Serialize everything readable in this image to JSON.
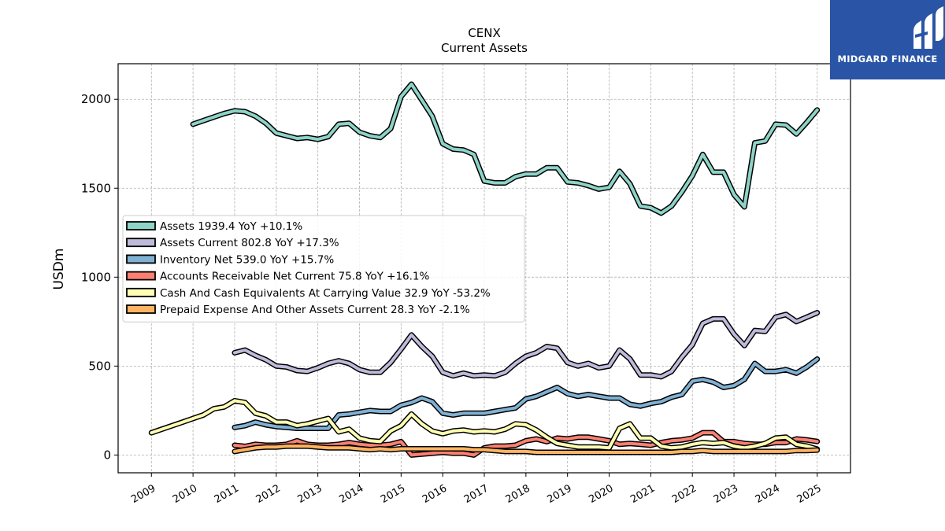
{
  "chart_data": {
    "type": "line",
    "title": "CENX",
    "subtitle": "Current  Assets",
    "xlabel": "",
    "ylabel": "USDm",
    "xlim": [
      2008.2,
      2025.8
    ],
    "ylim": [
      -100,
      2200
    ],
    "xticks": [
      "2009",
      "2010",
      "2011",
      "2012",
      "2013",
      "2014",
      "2015",
      "2016",
      "2017",
      "2018",
      "2019",
      "2020",
      "2021",
      "2022",
      "2023",
      "2024",
      "2025"
    ],
    "yticks": [
      0,
      500,
      1000,
      1500,
      2000
    ],
    "grid": true,
    "legend_position": "center-left",
    "series": [
      {
        "name": "Assets",
        "legend": "Assets  1939.4 YoY +10.1%",
        "color": "#8dd3c7",
        "x": [
          2010.0,
          2010.25,
          2010.5,
          2010.75,
          2011.0,
          2011.25,
          2011.5,
          2011.75,
          2012.0,
          2012.25,
          2012.5,
          2012.75,
          2013.0,
          2013.25,
          2013.5,
          2013.75,
          2014.0,
          2014.25,
          2014.5,
          2014.75,
          2015.0,
          2015.25,
          2015.5,
          2015.75,
          2016.0,
          2016.25,
          2016.5,
          2016.75,
          2017.0,
          2017.25,
          2017.5,
          2017.75,
          2018.0,
          2018.25,
          2018.5,
          2018.75,
          2019.0,
          2019.25,
          2019.5,
          2019.75,
          2020.0,
          2020.25,
          2020.5,
          2020.75,
          2021.0,
          2021.25,
          2021.5,
          2021.75,
          2022.0,
          2022.25,
          2022.5,
          2022.75,
          2023.0,
          2023.25,
          2023.5,
          2023.75,
          2024.0,
          2024.25,
          2024.5,
          2024.75,
          2025.0
        ],
        "values": [
          1860,
          1880,
          1900,
          1920,
          1935,
          1930,
          1905,
          1865,
          1810,
          1795,
          1780,
          1785,
          1775,
          1790,
          1860,
          1865,
          1815,
          1795,
          1785,
          1835,
          2015,
          2085,
          1995,
          1905,
          1750,
          1720,
          1715,
          1690,
          1540,
          1530,
          1530,
          1565,
          1580,
          1580,
          1615,
          1615,
          1535,
          1530,
          1515,
          1495,
          1505,
          1595,
          1525,
          1400,
          1390,
          1360,
          1400,
          1480,
          1570,
          1690,
          1590,
          1590,
          1465,
          1395,
          1755,
          1765,
          1860,
          1855,
          1805,
          1870,
          1940
        ]
      },
      {
        "name": "Assets Current",
        "legend": "Assets Current  802.8 YoY +17.3%",
        "color": "#bebada",
        "x": [
          2011.0,
          2011.25,
          2011.5,
          2011.75,
          2012.0,
          2012.25,
          2012.5,
          2012.75,
          2013.0,
          2013.25,
          2013.5,
          2013.75,
          2014.0,
          2014.25,
          2014.5,
          2014.75,
          2015.0,
          2015.25,
          2015.5,
          2015.75,
          2016.0,
          2016.25,
          2016.5,
          2016.75,
          2017.0,
          2017.25,
          2017.5,
          2017.75,
          2018.0,
          2018.25,
          2018.5,
          2018.75,
          2019.0,
          2019.25,
          2019.5,
          2019.75,
          2020.0,
          2020.25,
          2020.5,
          2020.75,
          2021.0,
          2021.25,
          2021.5,
          2021.75,
          2022.0,
          2022.25,
          2022.5,
          2022.75,
          2023.0,
          2023.25,
          2023.5,
          2023.75,
          2024.0,
          2024.25,
          2024.5,
          2024.75,
          2025.0
        ],
        "values": [
          575,
          590,
          560,
          535,
          500,
          495,
          475,
          470,
          490,
          515,
          530,
          515,
          480,
          465,
          465,
          520,
          595,
          675,
          610,
          555,
          465,
          445,
          460,
          445,
          450,
          445,
          465,
          515,
          555,
          575,
          610,
          600,
          520,
          500,
          515,
          490,
          500,
          590,
          540,
          450,
          450,
          440,
          470,
          550,
          620,
          740,
          765,
          765,
          680,
          615,
          700,
          695,
          775,
          790,
          750,
          775,
          800
        ]
      },
      {
        "name": "Inventory Net",
        "legend": "Inventory Net  539.0 YoY +15.7%",
        "color": "#80b1d3",
        "x": [
          2011.0,
          2011.25,
          2011.5,
          2011.75,
          2012.0,
          2012.25,
          2012.5,
          2012.75,
          2013.0,
          2013.25,
          2013.5,
          2013.75,
          2014.0,
          2014.25,
          2014.5,
          2014.75,
          2015.0,
          2015.25,
          2015.5,
          2015.75,
          2016.0,
          2016.25,
          2016.5,
          2016.75,
          2017.0,
          2017.25,
          2017.5,
          2017.75,
          2018.0,
          2018.25,
          2018.5,
          2018.75,
          2019.0,
          2019.25,
          2019.5,
          2019.75,
          2020.0,
          2020.25,
          2020.5,
          2020.75,
          2021.0,
          2021.25,
          2021.5,
          2021.75,
          2022.0,
          2022.25,
          2022.5,
          2022.75,
          2023.0,
          2023.25,
          2023.5,
          2023.75,
          2024.0,
          2024.25,
          2024.5,
          2024.75,
          2025.0
        ],
        "values": [
          155,
          165,
          185,
          170,
          160,
          155,
          150,
          150,
          150,
          150,
          225,
          230,
          240,
          250,
          245,
          245,
          280,
          295,
          320,
          300,
          235,
          225,
          235,
          235,
          235,
          245,
          255,
          265,
          315,
          330,
          355,
          380,
          345,
          330,
          340,
          330,
          320,
          320,
          285,
          275,
          290,
          300,
          325,
          340,
          415,
          425,
          410,
          380,
          390,
          425,
          515,
          470,
          470,
          480,
          460,
          495,
          539
        ]
      },
      {
        "name": "Accounts Receivable Net Current",
        "legend": "Accounts Receivable Net Current  75.8 YoY +16.1%",
        "color": "#fb8072",
        "x": [
          2011.0,
          2011.25,
          2011.5,
          2011.75,
          2012.0,
          2012.25,
          2012.5,
          2012.75,
          2013.0,
          2013.25,
          2013.5,
          2013.75,
          2014.0,
          2014.25,
          2014.5,
          2014.75,
          2015.0,
          2015.25,
          2015.5,
          2015.75,
          2016.0,
          2016.25,
          2016.5,
          2016.75,
          2017.0,
          2017.25,
          2017.5,
          2017.75,
          2018.0,
          2018.25,
          2018.5,
          2018.75,
          2019.0,
          2019.25,
          2019.5,
          2019.75,
          2020.0,
          2020.25,
          2020.5,
          2020.75,
          2021.0,
          2021.25,
          2021.5,
          2021.75,
          2022.0,
          2022.25,
          2022.5,
          2022.75,
          2023.0,
          2023.25,
          2023.5,
          2023.75,
          2024.0,
          2024.25,
          2024.5,
          2024.75,
          2025.0
        ],
        "values": [
          55,
          48,
          60,
          55,
          55,
          60,
          80,
          60,
          55,
          55,
          60,
          70,
          60,
          55,
          55,
          60,
          75,
          0,
          5,
          10,
          15,
          10,
          10,
          0,
          40,
          50,
          50,
          55,
          80,
          90,
          75,
          95,
          90,
          100,
          100,
          90,
          80,
          60,
          65,
          60,
          55,
          70,
          80,
          85,
          95,
          125,
          125,
          75,
          75,
          65,
          60,
          60,
          70,
          70,
          90,
          85,
          76
        ]
      },
      {
        "name": "Cash And Cash Equivalents At Carrying Value",
        "legend": "Cash And Cash Equivalents At Carrying Value  32.9 YoY -53.2%",
        "color": "#ffffb3",
        "x": [
          2009.0,
          2009.25,
          2009.5,
          2009.75,
          2010.0,
          2010.25,
          2010.5,
          2010.75,
          2011.0,
          2011.25,
          2011.5,
          2011.75,
          2012.0,
          2012.25,
          2012.5,
          2012.75,
          2013.0,
          2013.25,
          2013.5,
          2013.75,
          2014.0,
          2014.25,
          2014.5,
          2014.75,
          2015.0,
          2015.25,
          2015.5,
          2015.75,
          2016.0,
          2016.25,
          2016.5,
          2016.75,
          2017.0,
          2017.25,
          2017.5,
          2017.75,
          2018.0,
          2018.25,
          2018.5,
          2018.75,
          2019.0,
          2019.25,
          2019.5,
          2019.75,
          2020.0,
          2020.25,
          2020.5,
          2020.75,
          2021.0,
          2021.25,
          2021.5,
          2021.75,
          2022.0,
          2022.25,
          2022.5,
          2022.75,
          2023.0,
          2023.25,
          2023.5,
          2023.75,
          2024.0,
          2024.25,
          2024.5,
          2024.75,
          2025.0
        ],
        "values": [
          125,
          145,
          165,
          185,
          205,
          225,
          260,
          270,
          305,
          295,
          235,
          220,
          185,
          185,
          165,
          175,
          190,
          205,
          130,
          145,
          95,
          80,
          75,
          135,
          165,
          230,
          175,
          135,
          120,
          135,
          140,
          130,
          135,
          130,
          145,
          175,
          170,
          140,
          100,
          65,
          55,
          45,
          45,
          45,
          40,
          150,
          175,
          95,
          95,
          50,
          40,
          45,
          60,
          70,
          65,
          70,
          50,
          40,
          50,
          65,
          95,
          100,
          60,
          50,
          33
        ]
      },
      {
        "name": "Prepaid Expense And Other Assets Current",
        "legend": "Prepaid Expense And Other Assets Current  28.3 YoY -2.1%",
        "color": "#fdb462",
        "x": [
          2011.0,
          2011.25,
          2011.5,
          2011.75,
          2012.0,
          2012.25,
          2012.5,
          2012.75,
          2013.0,
          2013.25,
          2013.5,
          2013.75,
          2014.0,
          2014.25,
          2014.5,
          2014.75,
          2015.0,
          2015.25,
          2015.5,
          2015.75,
          2016.0,
          2016.25,
          2016.5,
          2016.75,
          2017.0,
          2017.25,
          2017.5,
          2017.75,
          2018.0,
          2018.25,
          2018.5,
          2018.75,
          2019.0,
          2019.25,
          2019.5,
          2019.75,
          2020.0,
          2020.25,
          2020.5,
          2020.75,
          2021.0,
          2021.25,
          2021.5,
          2021.75,
          2022.0,
          2022.25,
          2022.5,
          2022.75,
          2023.0,
          2023.25,
          2023.5,
          2023.75,
          2024.0,
          2024.25,
          2024.5,
          2024.75,
          2025.0
        ],
        "values": [
          20,
          30,
          40,
          45,
          45,
          50,
          50,
          50,
          45,
          40,
          40,
          40,
          35,
          30,
          35,
          30,
          35,
          35,
          35,
          35,
          35,
          35,
          35,
          30,
          30,
          25,
          20,
          20,
          20,
          15,
          15,
          15,
          15,
          15,
          15,
          15,
          15,
          15,
          15,
          15,
          15,
          15,
          15,
          20,
          20,
          25,
          20,
          20,
          20,
          20,
          20,
          20,
          20,
          20,
          25,
          25,
          28
        ]
      }
    ]
  },
  "logo": {
    "text": "MIDGARD FINANCE",
    "color": "#2a55a6"
  }
}
